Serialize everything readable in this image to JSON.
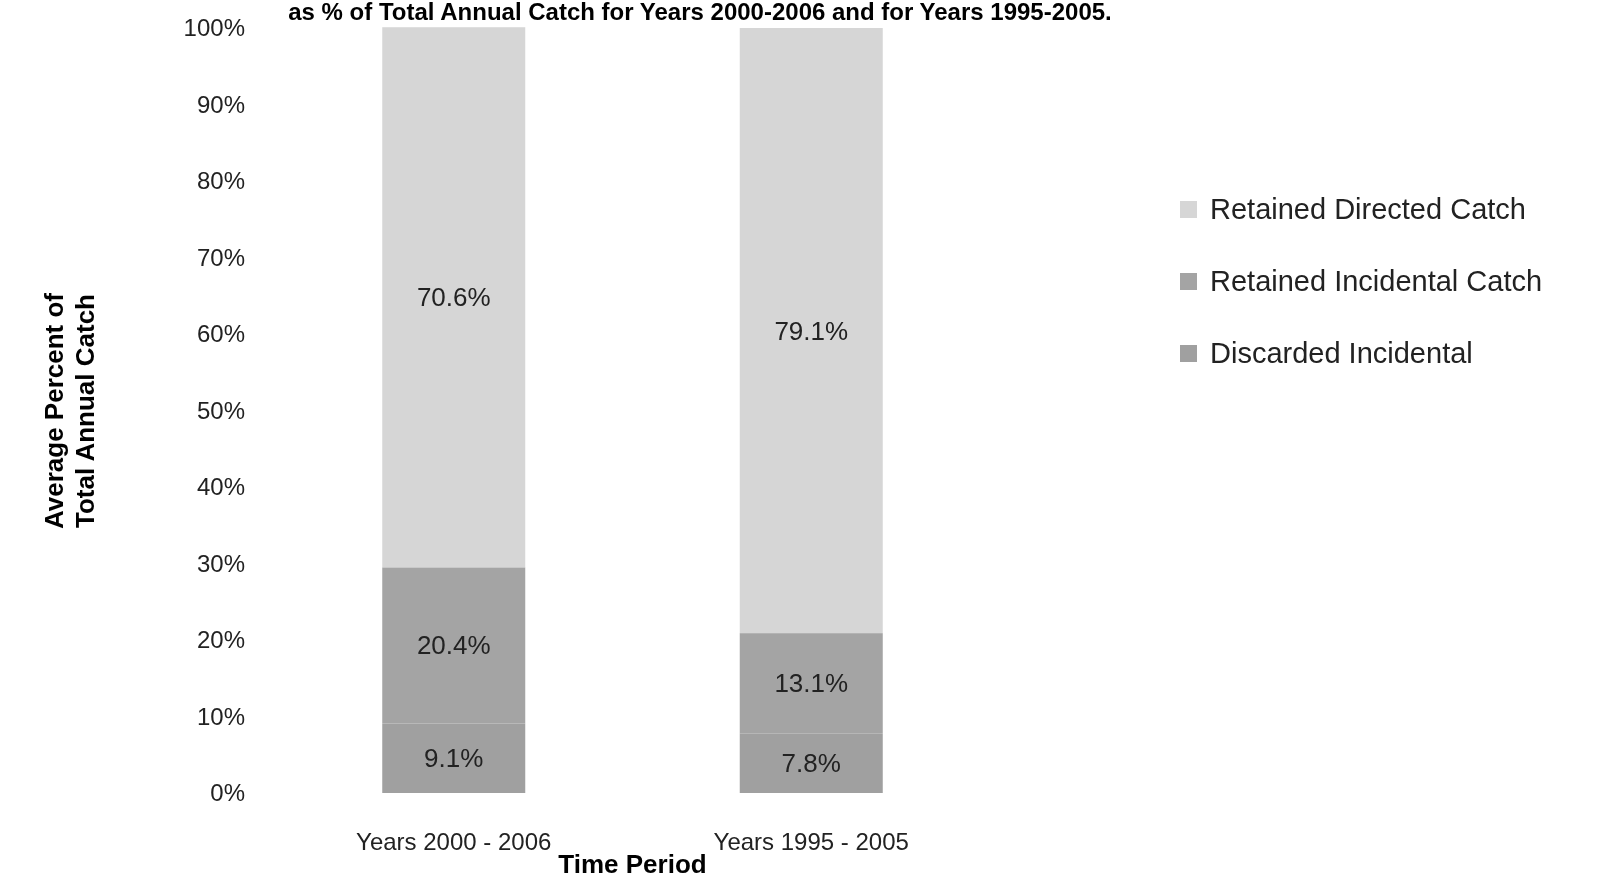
{
  "chart_data": {
    "type": "bar",
    "title": "as % of Total Annual Catch for Years 2000-2006 and for Years 1995-2005.",
    "xlabel": "Time Period",
    "ylabel": "Average Percent of Total Annual Catch",
    "categories": [
      "Years 2000 - 2006",
      "Years 1995 - 2005"
    ],
    "stacked": true,
    "ylim": [
      0,
      100
    ],
    "yticks": [
      {
        "value": 0,
        "label": "0%"
      },
      {
        "value": 10,
        "label": "10%"
      },
      {
        "value": 20,
        "label": "20%"
      },
      {
        "value": 30,
        "label": "30%"
      },
      {
        "value": 40,
        "label": "40%"
      },
      {
        "value": 50,
        "label": "50%"
      },
      {
        "value": 60,
        "label": "60%"
      },
      {
        "value": 70,
        "label": "70%"
      },
      {
        "value": 80,
        "label": "80%"
      },
      {
        "value": 90,
        "label": "90%"
      },
      {
        "value": 100,
        "label": "100%"
      }
    ],
    "series": [
      {
        "name": "Discarded Incidental",
        "color": "#a0a0a0",
        "values": [
          9.1,
          7.8
        ],
        "value_labels": [
          "9.1%",
          "7.8%"
        ]
      },
      {
        "name": "Retained Incidental Catch",
        "color": "#a4a4a4",
        "values": [
          20.4,
          13.1
        ],
        "value_labels": [
          "20.4%",
          "13.1%"
        ]
      },
      {
        "name": "Retained Directed Catch",
        "color": "#d6d6d6",
        "values": [
          70.6,
          79.1
        ],
        "value_labels": [
          "70.6%",
          "79.1%"
        ]
      }
    ],
    "legend": "right",
    "grid": false
  }
}
